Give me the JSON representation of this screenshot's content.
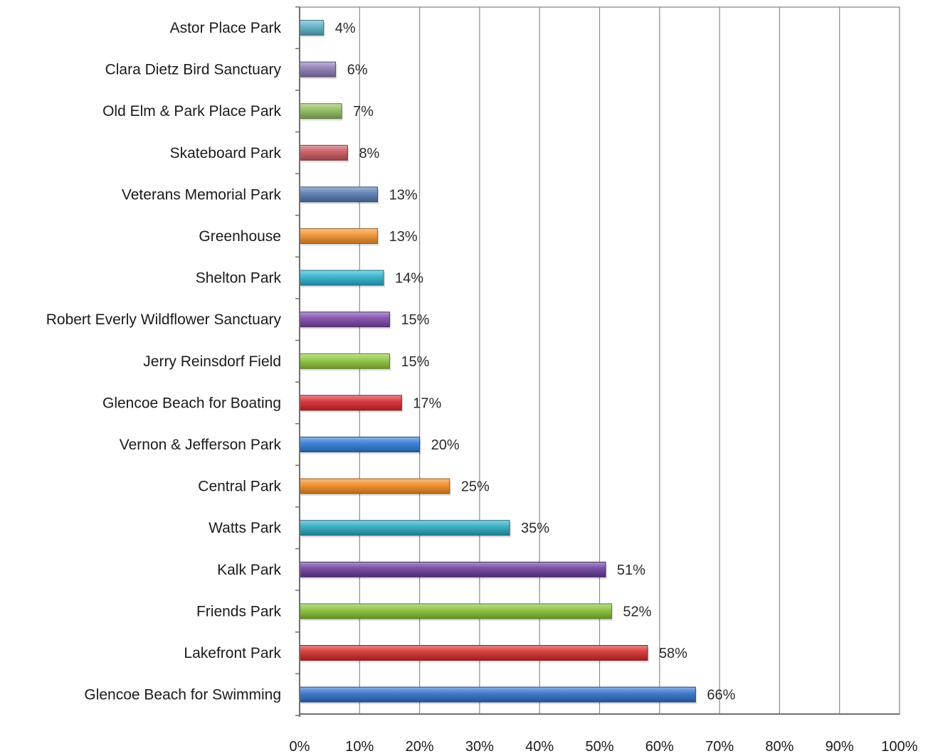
{
  "chart_data": {
    "type": "bar",
    "orientation": "horizontal",
    "categories": [
      "Astor Place Park",
      "Clara Dietz Bird Sanctuary",
      "Old Elm & Park Place Park",
      "Skateboard Park",
      "Veterans Memorial Park",
      "Greenhouse",
      "Shelton Park",
      "Robert Everly Wildflower Sanctuary",
      "Jerry Reinsdorf Field",
      "Glencoe Beach for Boating",
      "Vernon & Jefferson Park",
      "Central Park",
      "Watts Park",
      "Kalk Park",
      "Friends Park",
      "Lakefront Park",
      "Glencoe Beach for Swimming"
    ],
    "values": [
      4,
      6,
      7,
      8,
      13,
      13,
      14,
      15,
      15,
      17,
      20,
      25,
      35,
      51,
      52,
      58,
      66
    ],
    "value_labels": [
      "4%",
      "6%",
      "7%",
      "8%",
      "13%",
      "13%",
      "14%",
      "15%",
      "15%",
      "17%",
      "20%",
      "25%",
      "35%",
      "51%",
      "52%",
      "58%",
      "66%"
    ],
    "colors": [
      "#5aaec4",
      "#8a78b2",
      "#8fba5c",
      "#c6565e",
      "#5479b0",
      "#f0902a",
      "#2bb0cc",
      "#7a45a8",
      "#8ec43a",
      "#d6262d",
      "#2e7ad4",
      "#f08a22",
      "#2aa7be",
      "#6a3c9c",
      "#86bf33",
      "#d52a2a",
      "#2f6fc8"
    ],
    "xlim": [
      0,
      100
    ],
    "x_ticks": [
      "0%",
      "10%",
      "20%",
      "30%",
      "40%",
      "50%",
      "60%",
      "70%",
      "80%",
      "90%",
      "100%"
    ],
    "grid": "vertical",
    "legend": "none",
    "title": "",
    "xlabel": "",
    "ylabel": ""
  }
}
